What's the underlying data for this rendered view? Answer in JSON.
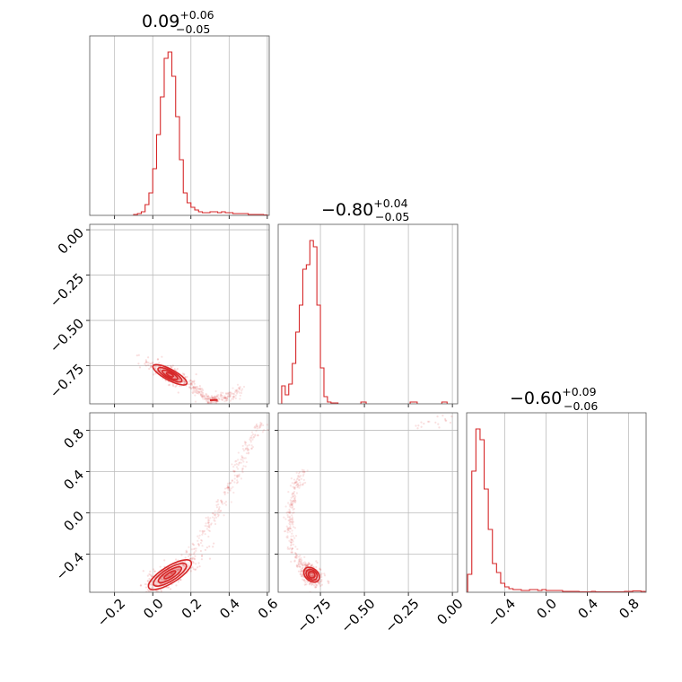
{
  "chart_data": {
    "type": "corner",
    "color": "#d62728",
    "grid": true,
    "parameters": [
      {
        "title": {
          "median": "0.09",
          "plus": "+0.06",
          "minus": "−0.05"
        },
        "range": [
          -0.33,
          0.61
        ],
        "ticks": [
          -0.2,
          0.0,
          0.2,
          0.4,
          0.6
        ],
        "tick_labels": [
          "−0.2",
          "0.0",
          "0.2",
          "0.4",
          "0.6"
        ],
        "histogram": {
          "bin_edges": [
            -0.1,
            -0.08,
            -0.06,
            -0.04,
            -0.02,
            0.0,
            0.02,
            0.04,
            0.06,
            0.08,
            0.1,
            0.12,
            0.14,
            0.16,
            0.18,
            0.2,
            0.22,
            0.24,
            0.26,
            0.28,
            0.3,
            0.32,
            0.34,
            0.36,
            0.38,
            0.4,
            0.42,
            0.44,
            0.46,
            0.48,
            0.5,
            0.52,
            0.54,
            0.56,
            0.58,
            0.6
          ],
          "counts": [
            1,
            2,
            4,
            12,
            25,
            52,
            90,
            132,
            175,
            182,
            155,
            110,
            62,
            25,
            14,
            9,
            6,
            4,
            3,
            3,
            4,
            4,
            3,
            4,
            3,
            3,
            2,
            2,
            2,
            2,
            1,
            1,
            1,
            1,
            0.5
          ]
        }
      },
      {
        "title": {
          "median": "−0.80",
          "plus": "+0.04",
          "minus": "−0.05"
        },
        "range": [
          -0.99,
          0.03
        ],
        "ticks": [
          -0.75,
          -0.5,
          -0.25,
          0.0
        ],
        "tick_labels": [
          "−0.75",
          "−0.50",
          "−0.25",
          "0.00"
        ],
        "histogram": {
          "bin_edges": [
            -0.97,
            -0.95,
            -0.93,
            -0.91,
            -0.89,
            -0.87,
            -0.85,
            -0.83,
            -0.81,
            -0.79,
            -0.77,
            -0.75,
            -0.73,
            -0.71,
            -0.69,
            -0.67,
            -0.65
          ],
          "counts": [
            20,
            10,
            22,
            45,
            80,
            110,
            150,
            155,
            182,
            175,
            110,
            40,
            8,
            2,
            1,
            1
          ],
          "tail": [
            [
              -0.52,
              -0.49,
              2
            ],
            [
              -0.24,
              -0.2,
              2
            ],
            [
              -0.06,
              -0.03,
              2
            ]
          ]
        }
      },
      {
        "title": {
          "median": "−0.60",
          "plus": "+0.09",
          "minus": "−0.06"
        },
        "range": [
          -0.77,
          0.97
        ],
        "ticks": [
          -0.4,
          0.0,
          0.4,
          0.8
        ],
        "tick_labels": [
          "−0.4",
          "0.0",
          "0.4",
          "0.8"
        ],
        "histogram": {
          "bin_edges": [
            -0.76,
            -0.72,
            -0.68,
            -0.64,
            -0.6,
            -0.56,
            -0.52,
            -0.48,
            -0.44,
            -0.4,
            -0.36,
            -0.32,
            -0.28,
            -0.24,
            -0.2,
            -0.16,
            -0.12,
            -0.08,
            -0.04,
            0.0,
            0.04,
            0.08,
            0.12,
            0.16,
            0.2,
            0.24,
            0.28,
            0.32,
            0.36,
            0.4,
            0.44,
            0.48,
            0.52,
            0.56,
            0.6,
            0.64,
            0.68,
            0.72,
            0.76,
            0.8,
            0.84,
            0.88,
            0.92,
            0.96
          ],
          "counts": [
            20,
            135,
            182,
            170,
            115,
            70,
            32,
            22,
            10,
            6,
            4,
            3,
            3,
            2,
            2,
            3,
            3,
            2,
            3,
            2,
            2,
            2,
            2,
            1,
            1,
            1,
            1,
            0.5,
            0.5,
            0.5,
            1,
            0.5,
            0.5,
            0.5,
            0.5,
            0.5,
            0.5,
            0.5,
            1,
            1,
            1.5,
            1.5,
            1
          ]
        }
      }
    ],
    "pairs": [
      {
        "x_param": 0,
        "y_param": 1,
        "center": [
          0.09,
          -0.8
        ],
        "contour_levels": [
          {
            "rx": 0.1,
            "ry": 0.03
          },
          {
            "rx": 0.07,
            "ry": 0.022
          },
          {
            "rx": 0.045,
            "ry": 0.015
          },
          {
            "rx": 0.02,
            "ry": 0.008
          }
        ],
        "outlier_path": [
          [
            0.2,
            -0.86
          ],
          [
            0.26,
            -0.91
          ],
          [
            0.3,
            -0.94
          ],
          [
            0.34,
            -0.935
          ],
          [
            0.4,
            -0.92
          ],
          [
            0.46,
            -0.88
          ]
        ],
        "outlier_dense_segment": [
          [
            0.3,
            -0.94
          ],
          [
            0.34,
            -0.938
          ]
        ]
      },
      {
        "x_param": 0,
        "y_param": 2,
        "center": [
          0.09,
          -0.6
        ],
        "contour_levels": [
          {
            "rx": 0.13,
            "ry": 0.08
          },
          {
            "rx": 0.1,
            "ry": 0.06
          },
          {
            "rx": 0.07,
            "ry": 0.04
          },
          {
            "rx": 0.035,
            "ry": 0.02
          }
        ],
        "outlier_path": [
          [
            0.2,
            -0.4
          ],
          [
            0.3,
            -0.1
          ],
          [
            0.38,
            0.15
          ],
          [
            0.44,
            0.4
          ],
          [
            0.5,
            0.65
          ],
          [
            0.57,
            0.9
          ]
        ]
      },
      {
        "x_param": 1,
        "y_param": 2,
        "center": [
          -0.8,
          -0.6
        ],
        "contour_levels": [
          {
            "rx": 0.05,
            "ry": 0.06
          },
          {
            "rx": 0.035,
            "ry": 0.045
          },
          {
            "rx": 0.02,
            "ry": 0.03
          }
        ],
        "outlier_path": [
          [
            -0.76,
            -0.68
          ],
          [
            -0.84,
            -0.55
          ],
          [
            -0.9,
            -0.4
          ],
          [
            -0.93,
            -0.15
          ],
          [
            -0.92,
            0.05
          ],
          [
            -0.89,
            0.25
          ],
          [
            -0.85,
            0.4
          ]
        ],
        "outlier_far": [
          [
            -0.2,
            0.85
          ],
          [
            -0.1,
            0.88
          ],
          [
            -0.03,
            0.92
          ]
        ]
      }
    ]
  }
}
